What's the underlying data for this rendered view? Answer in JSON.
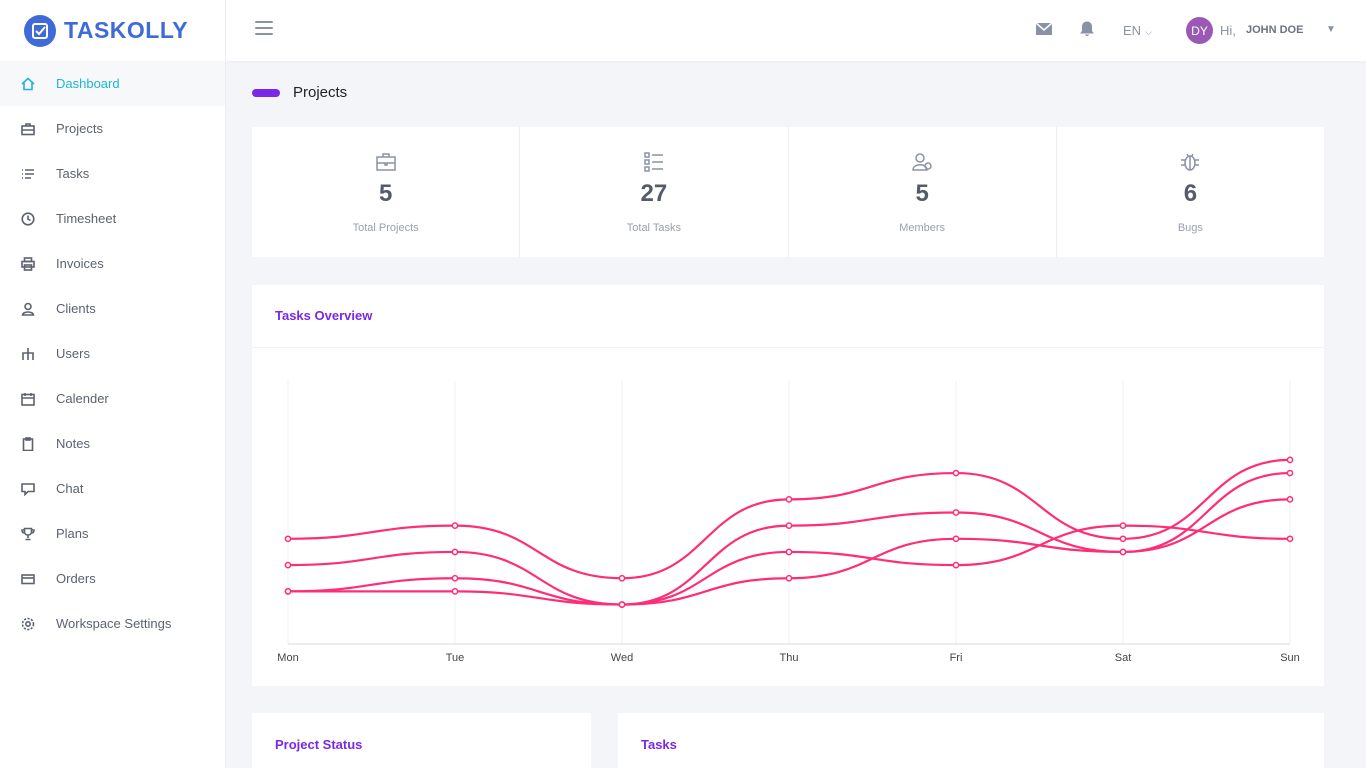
{
  "brand": {
    "name": "TASKOLLY"
  },
  "sidebar": {
    "items": [
      {
        "label": "Dashboard",
        "icon": "home-icon",
        "active": true
      },
      {
        "label": "Projects",
        "icon": "briefcase-icon"
      },
      {
        "label": "Tasks",
        "icon": "list-icon"
      },
      {
        "label": "Timesheet",
        "icon": "clock-icon"
      },
      {
        "label": "Invoices",
        "icon": "printer-icon"
      },
      {
        "label": "Clients",
        "icon": "user-icon"
      },
      {
        "label": "Users",
        "icon": "sitemap-icon"
      },
      {
        "label": "Calender",
        "icon": "calendar-icon"
      },
      {
        "label": "Notes",
        "icon": "clipboard-icon"
      },
      {
        "label": "Chat",
        "icon": "chat-icon"
      },
      {
        "label": "Plans",
        "icon": "trophy-icon"
      },
      {
        "label": "Orders",
        "icon": "credit-card-icon"
      },
      {
        "label": "Workspace Settings",
        "icon": "gear-icon"
      }
    ]
  },
  "topbar": {
    "lang": "EN",
    "avatar_initials": "DY",
    "greeting": "Hi,",
    "user_name": "JOHN DOE"
  },
  "page": {
    "title": "Projects"
  },
  "stats": [
    {
      "value": "5",
      "label": "Total Projects",
      "icon": "briefcase-icon"
    },
    {
      "value": "27",
      "label": "Total Tasks",
      "icon": "list-icon"
    },
    {
      "value": "5",
      "label": "Members",
      "icon": "users-icon"
    },
    {
      "value": "6",
      "label": "Bugs",
      "icon": "bug-icon"
    }
  ],
  "overview": {
    "title": "Tasks Overview"
  },
  "bottom": {
    "project_status_title": "Project Status",
    "tasks_title": "Tasks"
  },
  "colors": {
    "accent": "#7a28e8",
    "active": "#1fb5d8",
    "brand": "#3f6ad8",
    "line": "#ff2d78"
  },
  "chart_data": {
    "type": "line",
    "categories": [
      "Mon",
      "Tue",
      "Wed",
      "Thu",
      "Fri",
      "Sat",
      "Sun"
    ],
    "ylim": [
      0,
      10
    ],
    "grid": true,
    "series": [
      {
        "values": [
          4,
          4.5,
          2.5,
          5.5,
          6.5,
          4,
          7
        ]
      },
      {
        "values": [
          3,
          3.5,
          1.5,
          4.5,
          5,
          3.5,
          6.5
        ]
      },
      {
        "values": [
          2,
          2,
          1.5,
          3.5,
          3,
          4.5,
          4
        ]
      },
      {
        "values": [
          2,
          2.5,
          1.5,
          2.5,
          4,
          3.5,
          5.5
        ]
      }
    ]
  }
}
